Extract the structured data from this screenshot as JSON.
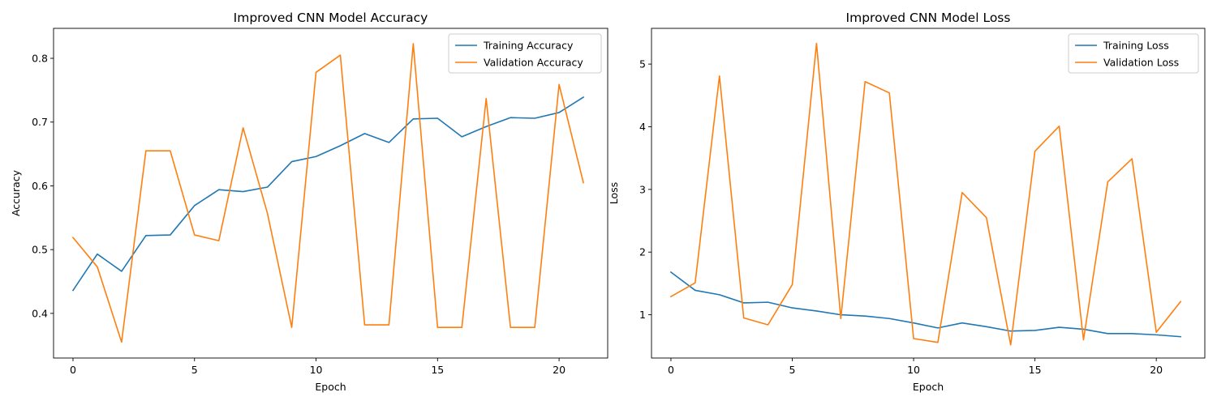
{
  "colors": {
    "training": "#1f77b4",
    "validation": "#ff7f0e",
    "axis": "#000000",
    "legend_border": "#cccccc"
  },
  "chart_data": [
    {
      "type": "line",
      "title": "Improved CNN Model Accuracy",
      "xlabel": "Epoch",
      "ylabel": "Accuracy",
      "xlim": [
        -0.8,
        22.0
      ],
      "ylim": [
        0.33,
        0.847
      ],
      "xticks": [
        0,
        5,
        10,
        15,
        20
      ],
      "xtick_labels": [
        "0",
        "5",
        "10",
        "15",
        "20"
      ],
      "yticks": [
        0.4,
        0.5,
        0.6,
        0.7,
        0.8
      ],
      "ytick_labels": [
        "0.4",
        "0.5",
        "0.6",
        "0.7",
        "0.8"
      ],
      "legend_position": "upper right",
      "x": [
        0,
        1,
        2,
        3,
        4,
        5,
        6,
        7,
        8,
        9,
        10,
        11,
        12,
        13,
        14,
        15,
        16,
        17,
        18,
        19,
        20,
        21
      ],
      "series": [
        {
          "name": "Training Accuracy",
          "color_key": "training",
          "values": [
            0.436,
            0.493,
            0.466,
            0.522,
            0.523,
            0.569,
            0.594,
            0.591,
            0.598,
            0.638,
            0.646,
            0.663,
            0.682,
            0.668,
            0.705,
            0.706,
            0.677,
            0.693,
            0.707,
            0.706,
            0.715,
            0.739
          ]
        },
        {
          "name": "Validation Accuracy",
          "color_key": "validation",
          "values": [
            0.519,
            0.473,
            0.355,
            0.655,
            0.655,
            0.523,
            0.514,
            0.691,
            0.557,
            0.378,
            0.778,
            0.805,
            0.382,
            0.382,
            0.823,
            0.378,
            0.378,
            0.737,
            0.378,
            0.378,
            0.759,
            0.605
          ]
        }
      ]
    },
    {
      "type": "line",
      "title": "Improved CNN Model Loss",
      "xlabel": "Epoch",
      "ylabel": "Loss",
      "xlim": [
        -0.8,
        22.0
      ],
      "ylim": [
        0.31,
        5.57
      ],
      "xticks": [
        0,
        5,
        10,
        15,
        20
      ],
      "xtick_labels": [
        "0",
        "5",
        "10",
        "15",
        "20"
      ],
      "yticks": [
        1,
        2,
        3,
        4,
        5
      ],
      "ytick_labels": [
        "1",
        "2",
        "3",
        "4",
        "5"
      ],
      "legend_position": "upper right",
      "x": [
        0,
        1,
        2,
        3,
        4,
        5,
        6,
        7,
        8,
        9,
        10,
        11,
        12,
        13,
        14,
        15,
        16,
        17,
        18,
        19,
        20,
        21
      ],
      "series": [
        {
          "name": "Training Loss",
          "color_key": "training",
          "values": [
            1.68,
            1.39,
            1.32,
            1.19,
            1.2,
            1.11,
            1.06,
            1.0,
            0.98,
            0.94,
            0.87,
            0.79,
            0.87,
            0.81,
            0.74,
            0.75,
            0.8,
            0.77,
            0.7,
            0.7,
            0.68,
            0.65
          ]
        },
        {
          "name": "Validation Loss",
          "color_key": "validation",
          "values": [
            1.29,
            1.51,
            4.81,
            0.95,
            0.84,
            1.48,
            5.33,
            0.94,
            4.72,
            4.54,
            0.62,
            0.56,
            2.95,
            2.55,
            0.52,
            3.61,
            4.01,
            0.6,
            3.12,
            3.49,
            0.72,
            1.21
          ]
        }
      ]
    }
  ]
}
